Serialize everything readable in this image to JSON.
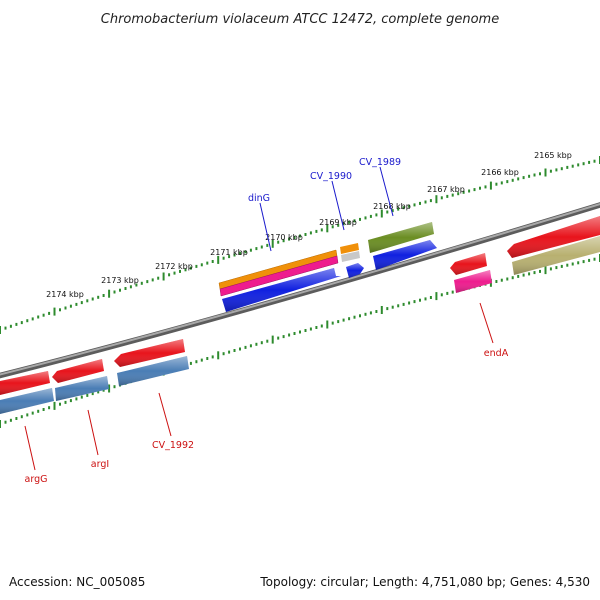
{
  "title": "Chromobacterium violaceum ATCC 12472, complete genome",
  "footer": {
    "accession": "Accession: NC_005085",
    "topology": "Topology: circular; Length: 4,751,080 bp; Genes: 4,530"
  },
  "ruler": {
    "tick_labels": [
      "2165 kbp",
      "2166 kbp",
      "2167 kbp",
      "2168 kbp",
      "2169 kbp",
      "2170 kbp",
      "2171 kbp",
      "2172 kbp",
      "2173 kbp",
      "2174 kbp"
    ]
  },
  "labels": {
    "dinG": "dinG",
    "CV_1990": "CV_1990",
    "CV_1989": "CV_1989",
    "endA": "endA",
    "argG": "argG",
    "argI": "argI",
    "CV_1992": "CV_1992"
  },
  "colors": {
    "backbone": "#7f7f7f",
    "ruler": "#2e8b2e",
    "red": "#e8141c",
    "steelblue": "#4a7db5",
    "blue": "#1020e0",
    "orange": "#f0900a",
    "pink": "#ee1c8e",
    "olive": "#6b8e23",
    "khaki": "#b8b070",
    "grey": "#c8c8c8",
    "label_blue": "#1a1acc",
    "label_red": "#cc1111"
  }
}
